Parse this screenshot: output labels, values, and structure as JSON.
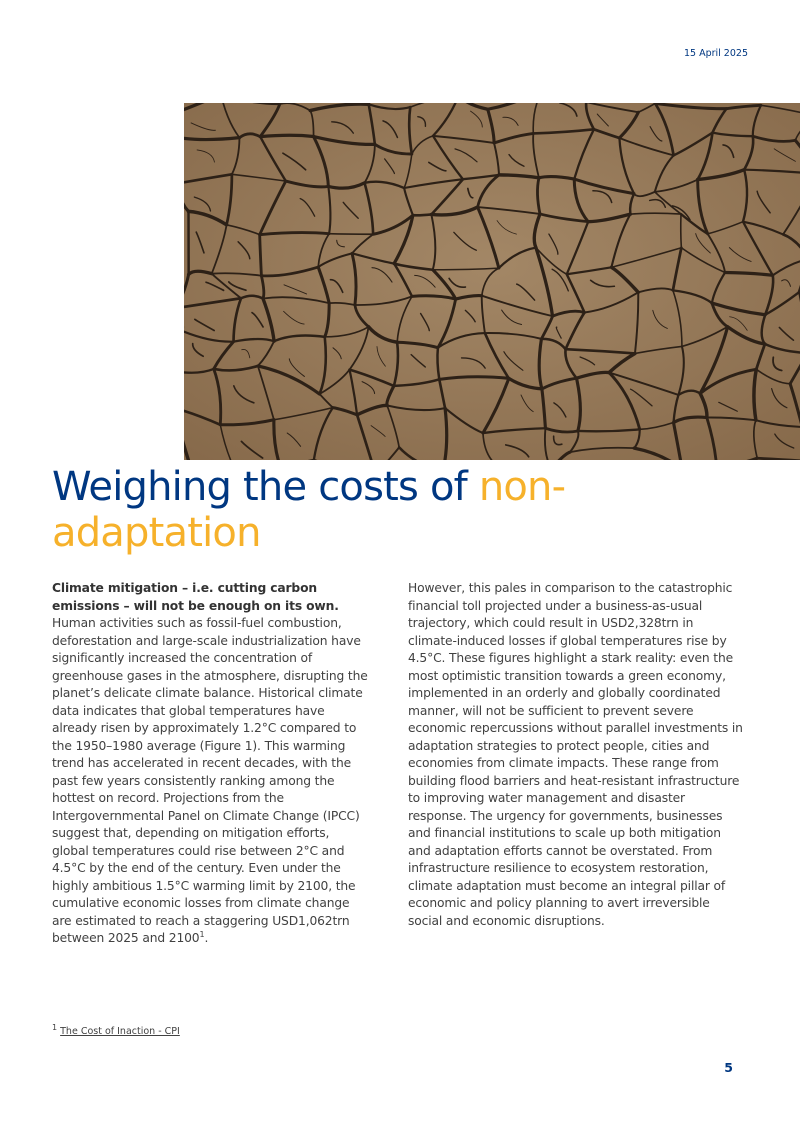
{
  "header": {
    "date": "15 April 2025"
  },
  "title": {
    "main": "Weighing the costs of",
    "highlight": "non-adaptation"
  },
  "column_left": {
    "lead": "Climate mitigation – i.e. cutting carbon emissions – will not be enough on its own.",
    "body": "Human activities such as fossil-fuel combustion, deforestation and large-scale industrialization have significantly increased the concentration of greenhouse gases in the atmosphere, disrupting the planet’s delicate climate balance. Historical climate data indicates that global temperatures have already risen by approximately 1.2°C compared to the 1950–1980 average (Figure 1). This warming trend has accelerated in recent decades, with the past few years consistently ranking among the hottest on record. Projections from the Intergovernmental Panel on Climate Change (IPCC) suggest that, depending on mitigation efforts, global temperatures could rise between 2°C and 4.5°C by the end of the century. Even under the highly ambitious 1.5°C warming limit by 2100, the cumulative economic losses from climate change are estimated to reach a staggering USD1,062trn between 2025 and 2100",
    "footnote_ref": "1",
    "end": "."
  },
  "column_right": {
    "body": "However, this pales in comparison to the catastrophic financial toll projected under a business-as-usual trajectory, which could result in USD2,328trn in climate-induced losses if global temperatures rise by 4.5°C. These figures highlight a stark reality: even the most optimistic transition towards a green economy, implemented in an orderly and globally coordinated manner, will not be sufficient to prevent severe economic repercussions without parallel investments in adaptation strategies to protect people, cities and economies from climate impacts. These range from building flood barriers and heat-resistant infrastructure to improving water management and disaster response. The urgency for governments, businesses and financial institutions to scale up both mitigation and adaptation efforts cannot be overstated. From infrastructure resilience to ecosystem restoration, climate adaptation must become an integral pillar of economic and policy planning to avert irreversible social and economic disruptions."
  },
  "footnote": {
    "number": "1",
    "text": "The Cost of Inaction - CPI"
  },
  "footer": {
    "page_number": "5"
  }
}
